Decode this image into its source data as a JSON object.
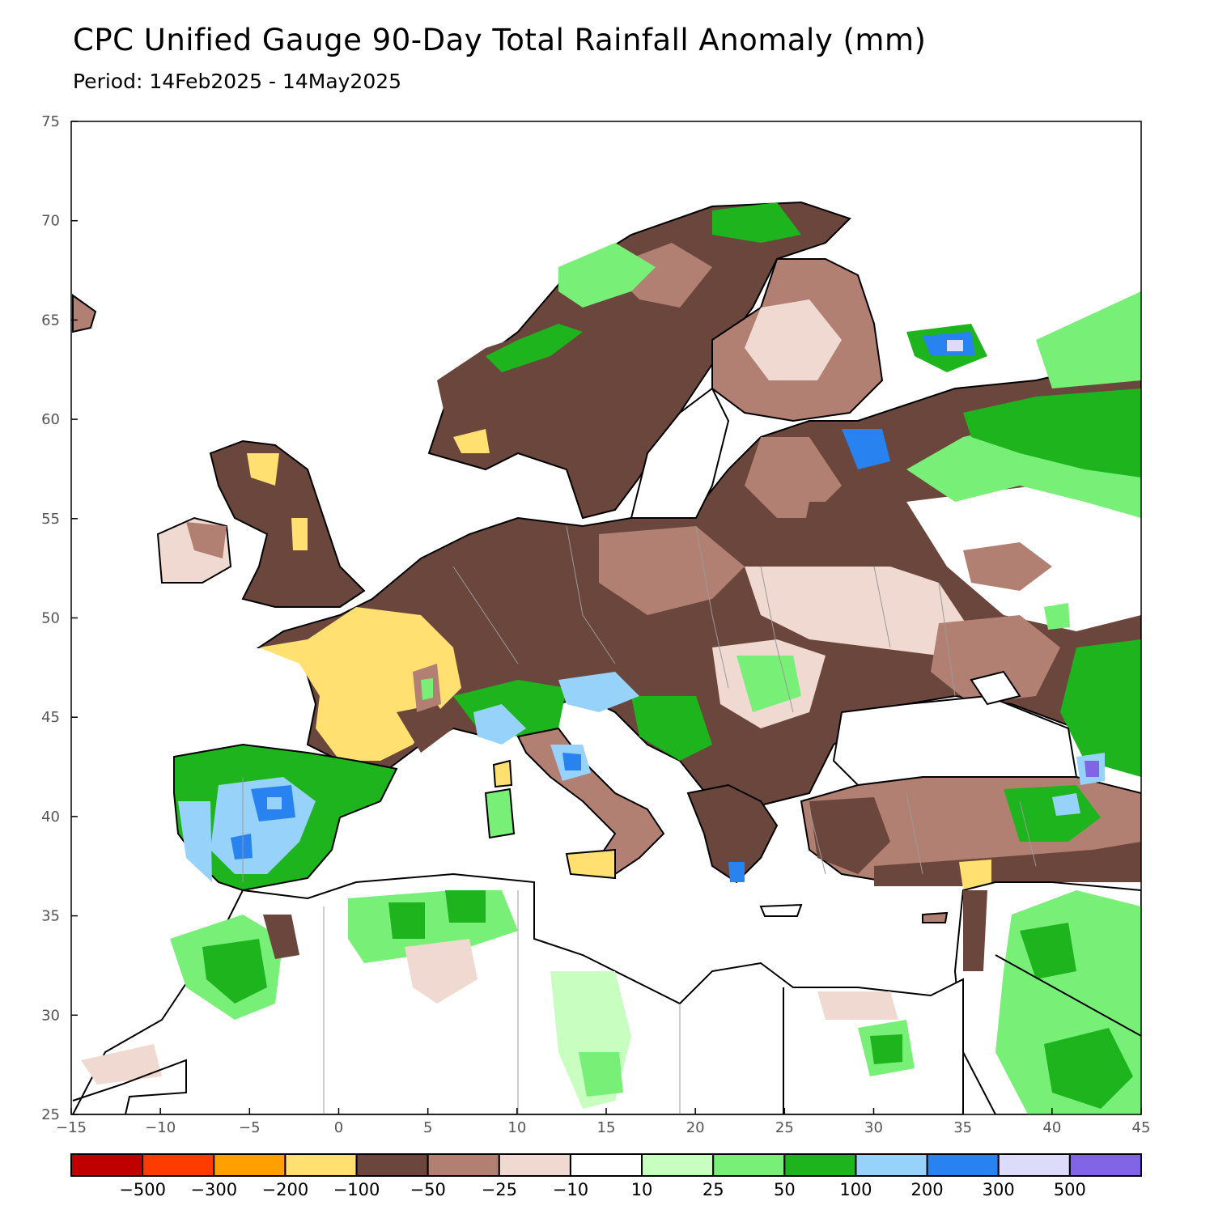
{
  "header": {
    "title": "CPC Unified Gauge 90-Day Total Rainfall Anomaly (mm)",
    "subtitle": "Period: 14Feb2025 - 14May2025"
  },
  "map": {
    "lon_range": [
      -15,
      45
    ],
    "lat_range": [
      25,
      75
    ],
    "x_ticks": [
      "−15",
      "−10",
      "−5",
      "0",
      "5",
      "10",
      "15",
      "20",
      "25",
      "30",
      "35",
      "40",
      "45"
    ],
    "y_ticks": [
      "25",
      "30",
      "35",
      "40",
      "45",
      "50",
      "55",
      "60",
      "65",
      "70",
      "75"
    ]
  },
  "colorbar": {
    "colors": [
      "#c00000",
      "#ff3c00",
      "#ffa000",
      "#ffe070",
      "#6b463c",
      "#b27f73",
      "#efd9d1",
      "#ffffff",
      "#c8ffc0",
      "#78f078",
      "#1eb41e",
      "#96d2fa",
      "#2882f0",
      "#dcdcfa",
      "#8264e6"
    ],
    "labels": [
      "−500",
      "−300",
      "−200",
      "−100",
      "−50",
      "−25",
      "−10",
      "10",
      "25",
      "50",
      "100",
      "200",
      "300",
      "500"
    ]
  }
}
